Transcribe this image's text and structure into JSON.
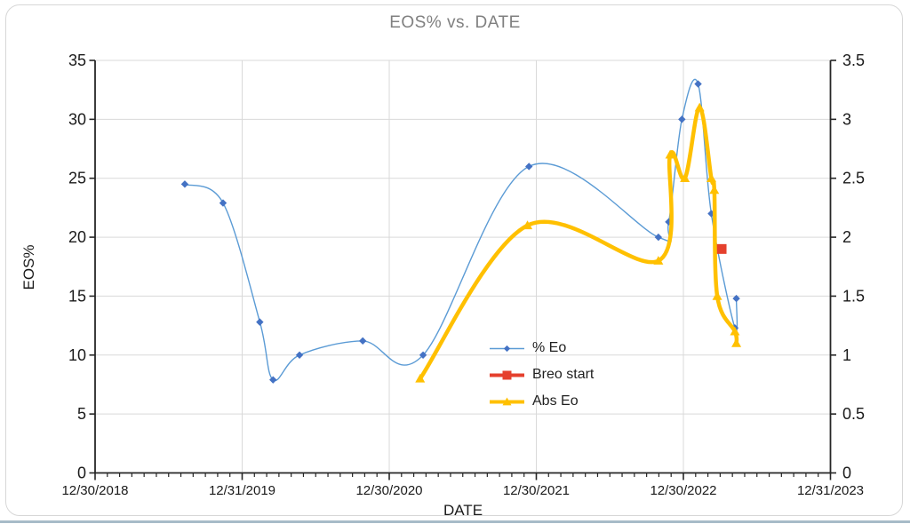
{
  "chart": {
    "title": "EOS% vs. DATE",
    "x_axis_title": "DATE",
    "y_axis_title": "EOS%"
  },
  "colors": {
    "title_gray": "#808080",
    "gridline": "#d9d9d9",
    "axis_line": "#262626",
    "tick_label": "#1a1a1a",
    "blue_line": "#5b9bd5",
    "blue_marker": "#4472c4",
    "red": "#e5402d",
    "yellow": "#ffc000",
    "window_edge": "#a7bbc8"
  },
  "chart_data": {
    "type": "line",
    "title": "EOS% vs. DATE",
    "xlabel": "DATE",
    "ylabel_left": "EOS%",
    "x_axis": {
      "unit": "years after 12/30/2018 (axis start), estimated from monthly tick marks",
      "min": 0,
      "max": 5,
      "tick_positions": [
        0,
        1,
        2,
        3,
        4,
        5
      ],
      "tick_labels": [
        "12/30/2018",
        "12/31/2019",
        "12/30/2020",
        "12/30/2021",
        "12/30/2022",
        "12/31/2023"
      ],
      "minor_ticks_per_year": 12
    },
    "y_left": {
      "min": 0,
      "max": 35,
      "step": 5,
      "tick_labels": [
        "0",
        "5",
        "10",
        "15",
        "20",
        "25",
        "30",
        "35"
      ]
    },
    "y_right": {
      "min": 0,
      "max": 3.5,
      "step": 0.5,
      "tick_labels": [
        "0",
        "0.5",
        "1",
        "1.5",
        "2",
        "2.5",
        "3",
        "3.5"
      ]
    },
    "grid": true,
    "legend_position": "inside-lower-center",
    "series": [
      {
        "name": "% Eo",
        "axis": "left",
        "line_color": "#5b9bd5",
        "marker": "diamond",
        "marker_color": "#4472c4",
        "line_width": 1.4,
        "smooth": true,
        "points": [
          [
            0.61,
            24.5
          ],
          [
            0.87,
            22.9
          ],
          [
            1.12,
            12.8
          ],
          [
            1.21,
            7.9
          ],
          [
            1.39,
            10.0
          ],
          [
            1.82,
            11.2
          ],
          [
            2.23,
            10.0
          ],
          [
            2.95,
            26.0
          ],
          [
            3.83,
            20.0
          ],
          [
            3.9,
            21.3
          ],
          [
            3.99,
            30.0
          ],
          [
            4.1,
            33.0
          ],
          [
            4.19,
            22.0
          ],
          [
            4.35,
            12.3
          ],
          [
            4.36,
            14.8
          ]
        ]
      },
      {
        "name": "Breo start",
        "axis": "left",
        "line_color": "#e5402d",
        "marker": "square",
        "marker_color": "#e5402d",
        "line_width": 4,
        "smooth": false,
        "points": [
          [
            4.26,
            19.0
          ]
        ]
      },
      {
        "name": "Abs Eo",
        "axis": "right",
        "line_color": "#ffc000",
        "marker": "triangle",
        "marker_color": "#ffc000",
        "line_width": 4.5,
        "smooth": true,
        "points": [
          [
            2.21,
            0.8
          ],
          [
            2.94,
            2.1
          ],
          [
            3.83,
            1.8
          ],
          [
            3.91,
            2.7
          ],
          [
            4.01,
            2.5
          ],
          [
            4.11,
            3.1
          ],
          [
            4.19,
            2.5
          ],
          [
            4.21,
            2.4
          ],
          [
            4.23,
            1.5
          ],
          [
            4.35,
            1.2
          ],
          [
            4.36,
            1.1
          ]
        ]
      }
    ]
  }
}
